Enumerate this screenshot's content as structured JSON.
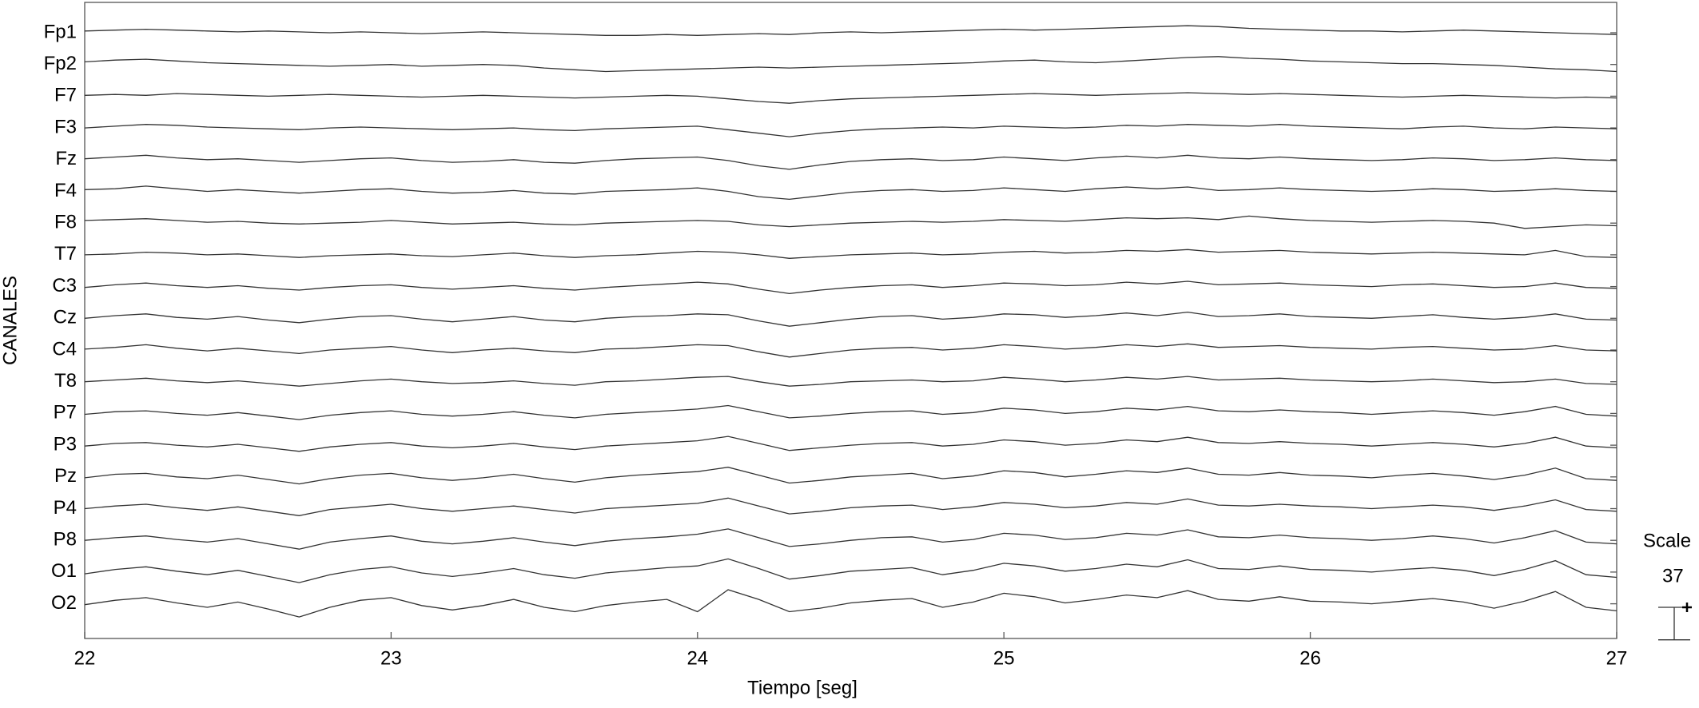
{
  "chart_data": {
    "type": "line",
    "xlabel": "Tiempo [seg]",
    "ylabel": "CANALES",
    "color": "#333333",
    "xlim": [
      22,
      27
    ],
    "xticks": [
      22,
      23,
      24,
      25,
      26,
      27
    ],
    "x": [
      22.0,
      22.1,
      22.2,
      22.3,
      22.4,
      22.5,
      22.6,
      22.7,
      22.8,
      22.9,
      23.0,
      23.1,
      23.2,
      23.3,
      23.4,
      23.5,
      23.6,
      23.7,
      23.8,
      23.9,
      24.0,
      24.1,
      24.2,
      24.3,
      24.4,
      24.5,
      24.6,
      24.7,
      24.8,
      24.9,
      25.0,
      25.1,
      25.2,
      25.3,
      25.4,
      25.5,
      25.6,
      25.7,
      25.8,
      25.9,
      26.0,
      26.1,
      26.2,
      26.3,
      26.4,
      26.5,
      26.6,
      26.7,
      26.8,
      26.9,
      27.0
    ],
    "series": [
      {
        "name": "Fp1",
        "values": [
          2,
          3,
          4,
          3,
          2,
          1,
          2,
          1,
          0,
          1,
          0,
          -1,
          0,
          1,
          0,
          -1,
          -2,
          -3,
          -3,
          -2,
          -3,
          -2,
          -1,
          -2,
          0,
          1,
          0,
          1,
          2,
          3,
          4,
          3,
          4,
          5,
          6,
          7,
          8,
          7,
          5,
          4,
          3,
          2,
          2,
          1,
          2,
          3,
          2,
          1,
          0,
          -1,
          -2
        ]
      },
      {
        "name": "Fp2",
        "values": [
          3,
          5,
          6,
          4,
          2,
          1,
          0,
          -1,
          -2,
          -1,
          0,
          -2,
          -1,
          0,
          -1,
          -4,
          -6,
          -8,
          -7,
          -6,
          -5,
          -4,
          -3,
          -4,
          -3,
          -2,
          -1,
          0,
          1,
          2,
          4,
          5,
          3,
          2,
          4,
          6,
          8,
          9,
          7,
          6,
          4,
          3,
          2,
          1,
          1,
          0,
          -1,
          -3,
          -5,
          -6,
          -8
        ]
      },
      {
        "name": "F7",
        "values": [
          1,
          2,
          1,
          3,
          2,
          1,
          0,
          1,
          2,
          1,
          0,
          -1,
          0,
          1,
          0,
          -1,
          -2,
          -1,
          0,
          1,
          0,
          -3,
          -6,
          -8,
          -5,
          -3,
          -2,
          -1,
          0,
          1,
          2,
          3,
          2,
          1,
          2,
          3,
          4,
          3,
          2,
          3,
          2,
          1,
          0,
          -1,
          0,
          1,
          0,
          -1,
          -2,
          -1,
          -2
        ]
      },
      {
        "name": "F3",
        "values": [
          0,
          2,
          4,
          3,
          1,
          0,
          -1,
          -2,
          0,
          1,
          0,
          -1,
          -2,
          -1,
          0,
          -2,
          -3,
          -1,
          0,
          1,
          2,
          -2,
          -6,
          -10,
          -6,
          -3,
          -1,
          0,
          1,
          0,
          2,
          1,
          0,
          1,
          3,
          2,
          4,
          3,
          2,
          4,
          2,
          1,
          0,
          -1,
          1,
          2,
          0,
          -1,
          1,
          0,
          -1
        ]
      },
      {
        "name": "Fz",
        "values": [
          1,
          3,
          5,
          2,
          0,
          1,
          -1,
          -3,
          -1,
          1,
          2,
          -1,
          -3,
          -2,
          0,
          -3,
          -4,
          -1,
          1,
          2,
          3,
          -1,
          -7,
          -11,
          -6,
          -2,
          0,
          1,
          -1,
          0,
          3,
          1,
          -1,
          2,
          4,
          2,
          5,
          2,
          1,
          3,
          1,
          0,
          -1,
          0,
          2,
          1,
          -1,
          0,
          2,
          0,
          -1
        ]
      },
      {
        "name": "F4",
        "values": [
          2,
          3,
          6,
          3,
          0,
          2,
          0,
          -2,
          0,
          2,
          3,
          0,
          -2,
          -1,
          1,
          -2,
          -3,
          0,
          1,
          2,
          4,
          0,
          -6,
          -9,
          -5,
          -1,
          1,
          2,
          0,
          1,
          4,
          2,
          0,
          3,
          5,
          3,
          5,
          1,
          2,
          4,
          2,
          1,
          0,
          1,
          3,
          2,
          0,
          1,
          3,
          1,
          0
        ]
      },
      {
        "name": "F8",
        "values": [
          3,
          4,
          5,
          3,
          1,
          2,
          0,
          -1,
          0,
          1,
          3,
          1,
          -1,
          0,
          1,
          -1,
          -2,
          0,
          1,
          2,
          3,
          2,
          -2,
          -4,
          -2,
          0,
          1,
          2,
          1,
          2,
          4,
          3,
          2,
          4,
          6,
          5,
          6,
          4,
          8,
          5,
          3,
          2,
          1,
          2,
          3,
          2,
          0,
          -6,
          -4,
          -2,
          -3
        ]
      },
      {
        "name": "T7",
        "values": [
          0,
          1,
          3,
          2,
          0,
          1,
          -1,
          -3,
          -1,
          0,
          1,
          -1,
          -2,
          0,
          2,
          -1,
          -3,
          -1,
          0,
          2,
          4,
          3,
          0,
          -4,
          -2,
          0,
          1,
          2,
          0,
          1,
          3,
          4,
          2,
          3,
          5,
          4,
          6,
          3,
          4,
          5,
          3,
          2,
          1,
          2,
          3,
          2,
          1,
          0,
          5,
          -2,
          -3
        ]
      },
      {
        "name": "C3",
        "values": [
          -1,
          2,
          4,
          1,
          -1,
          1,
          -2,
          -4,
          -1,
          1,
          2,
          -1,
          -3,
          -1,
          1,
          -2,
          -4,
          -1,
          1,
          3,
          5,
          3,
          -3,
          -8,
          -4,
          -1,
          1,
          2,
          -1,
          1,
          4,
          3,
          1,
          2,
          5,
          3,
          6,
          2,
          3,
          4,
          2,
          1,
          0,
          2,
          3,
          1,
          -1,
          0,
          4,
          -1,
          -2
        ]
      },
      {
        "name": "Cz",
        "values": [
          0,
          3,
          5,
          1,
          -1,
          2,
          -2,
          -5,
          -1,
          2,
          3,
          -1,
          -4,
          -1,
          2,
          -2,
          -4,
          0,
          2,
          3,
          5,
          4,
          -3,
          -9,
          -5,
          -1,
          2,
          3,
          -1,
          1,
          5,
          4,
          1,
          3,
          6,
          3,
          7,
          2,
          3,
          5,
          2,
          1,
          0,
          2,
          4,
          1,
          -1,
          1,
          5,
          -1,
          -2
        ]
      },
      {
        "name": "C4",
        "values": [
          1,
          3,
          6,
          2,
          -1,
          2,
          -1,
          -4,
          0,
          2,
          4,
          0,
          -3,
          0,
          2,
          -1,
          -3,
          1,
          2,
          4,
          6,
          5,
          -2,
          -8,
          -4,
          0,
          2,
          3,
          0,
          2,
          6,
          4,
          1,
          3,
          6,
          4,
          7,
          3,
          4,
          5,
          3,
          2,
          1,
          3,
          4,
          2,
          0,
          1,
          5,
          0,
          -1
        ]
      },
      {
        "name": "T8",
        "values": [
          0,
          2,
          4,
          1,
          -1,
          1,
          -2,
          -5,
          -2,
          1,
          3,
          0,
          -2,
          -1,
          1,
          -2,
          -4,
          0,
          1,
          3,
          5,
          6,
          0,
          -5,
          -3,
          0,
          1,
          2,
          0,
          1,
          5,
          3,
          0,
          2,
          5,
          3,
          6,
          2,
          3,
          4,
          2,
          1,
          0,
          1,
          3,
          1,
          -1,
          0,
          3,
          -2,
          -3
        ]
      },
      {
        "name": "P7",
        "values": [
          -1,
          2,
          3,
          0,
          -2,
          1,
          -3,
          -7,
          -2,
          1,
          3,
          -1,
          -3,
          -1,
          2,
          -2,
          -5,
          -1,
          1,
          3,
          5,
          9,
          2,
          -5,
          -3,
          0,
          2,
          3,
          -1,
          1,
          6,
          4,
          0,
          2,
          6,
          4,
          8,
          3,
          2,
          4,
          2,
          1,
          -1,
          1,
          3,
          1,
          -2,
          2,
          8,
          -1,
          -3
        ]
      },
      {
        "name": "P3",
        "values": [
          -1,
          2,
          3,
          0,
          -2,
          1,
          -3,
          -7,
          -2,
          1,
          3,
          -1,
          -3,
          -1,
          2,
          -2,
          -5,
          -1,
          1,
          3,
          5,
          10,
          2,
          -6,
          -3,
          0,
          2,
          3,
          -1,
          1,
          6,
          4,
          0,
          2,
          6,
          4,
          9,
          3,
          2,
          4,
          2,
          1,
          -1,
          1,
          3,
          1,
          -2,
          2,
          9,
          -1,
          -3
        ]
      },
      {
        "name": "Pz",
        "values": [
          -1,
          3,
          4,
          0,
          -2,
          2,
          -3,
          -8,
          -2,
          2,
          4,
          -1,
          -4,
          -1,
          3,
          -2,
          -6,
          -1,
          2,
          4,
          6,
          11,
          2,
          -7,
          -4,
          0,
          2,
          4,
          -2,
          1,
          7,
          5,
          0,
          3,
          7,
          5,
          10,
          3,
          2,
          5,
          2,
          1,
          -1,
          2,
          4,
          1,
          -3,
          2,
          10,
          -2,
          -4
        ]
      },
      {
        "name": "P4",
        "values": [
          0,
          3,
          5,
          1,
          -2,
          2,
          -3,
          -8,
          -1,
          2,
          5,
          0,
          -3,
          0,
          3,
          -1,
          -5,
          0,
          2,
          4,
          6,
          12,
          3,
          -6,
          -3,
          1,
          3,
          4,
          -1,
          2,
          7,
          5,
          1,
          3,
          7,
          5,
          11,
          4,
          3,
          5,
          3,
          2,
          0,
          2,
          4,
          2,
          -2,
          3,
          10,
          -1,
          -3
        ]
      },
      {
        "name": "P8",
        "values": [
          0,
          3,
          5,
          1,
          -2,
          2,
          -4,
          -10,
          -2,
          2,
          5,
          -1,
          -4,
          -1,
          3,
          -2,
          -6,
          -1,
          2,
          4,
          7,
          13,
          3,
          -7,
          -4,
          0,
          3,
          4,
          -2,
          1,
          8,
          6,
          1,
          3,
          8,
          6,
          12,
          4,
          3,
          6,
          3,
          2,
          0,
          2,
          5,
          2,
          -3,
          3,
          11,
          -2,
          -4
        ]
      },
      {
        "name": "O1",
        "values": [
          -2,
          3,
          6,
          1,
          -3,
          2,
          -5,
          -12,
          -3,
          3,
          6,
          -1,
          -5,
          -1,
          4,
          -3,
          -7,
          -1,
          2,
          5,
          7,
          15,
          4,
          -8,
          -4,
          1,
          3,
          5,
          -3,
          2,
          10,
          7,
          1,
          4,
          9,
          6,
          14,
          4,
          3,
          7,
          3,
          2,
          0,
          3,
          5,
          2,
          -4,
          3,
          13,
          -3,
          -6
        ]
      },
      {
        "name": "O2",
        "values": [
          -1,
          4,
          7,
          1,
          -4,
          2,
          -6,
          -15,
          -4,
          4,
          7,
          -2,
          -7,
          -2,
          5,
          -4,
          -9,
          -2,
          2,
          5,
          -9,
          16,
          5,
          -9,
          -5,
          1,
          4,
          6,
          -4,
          2,
          12,
          8,
          1,
          5,
          10,
          7,
          15,
          5,
          3,
          8,
          3,
          2,
          0,
          3,
          6,
          2,
          -5,
          3,
          14,
          -4,
          -8
        ]
      }
    ],
    "scale": {
      "label": "Scale",
      "value": 37
    }
  }
}
